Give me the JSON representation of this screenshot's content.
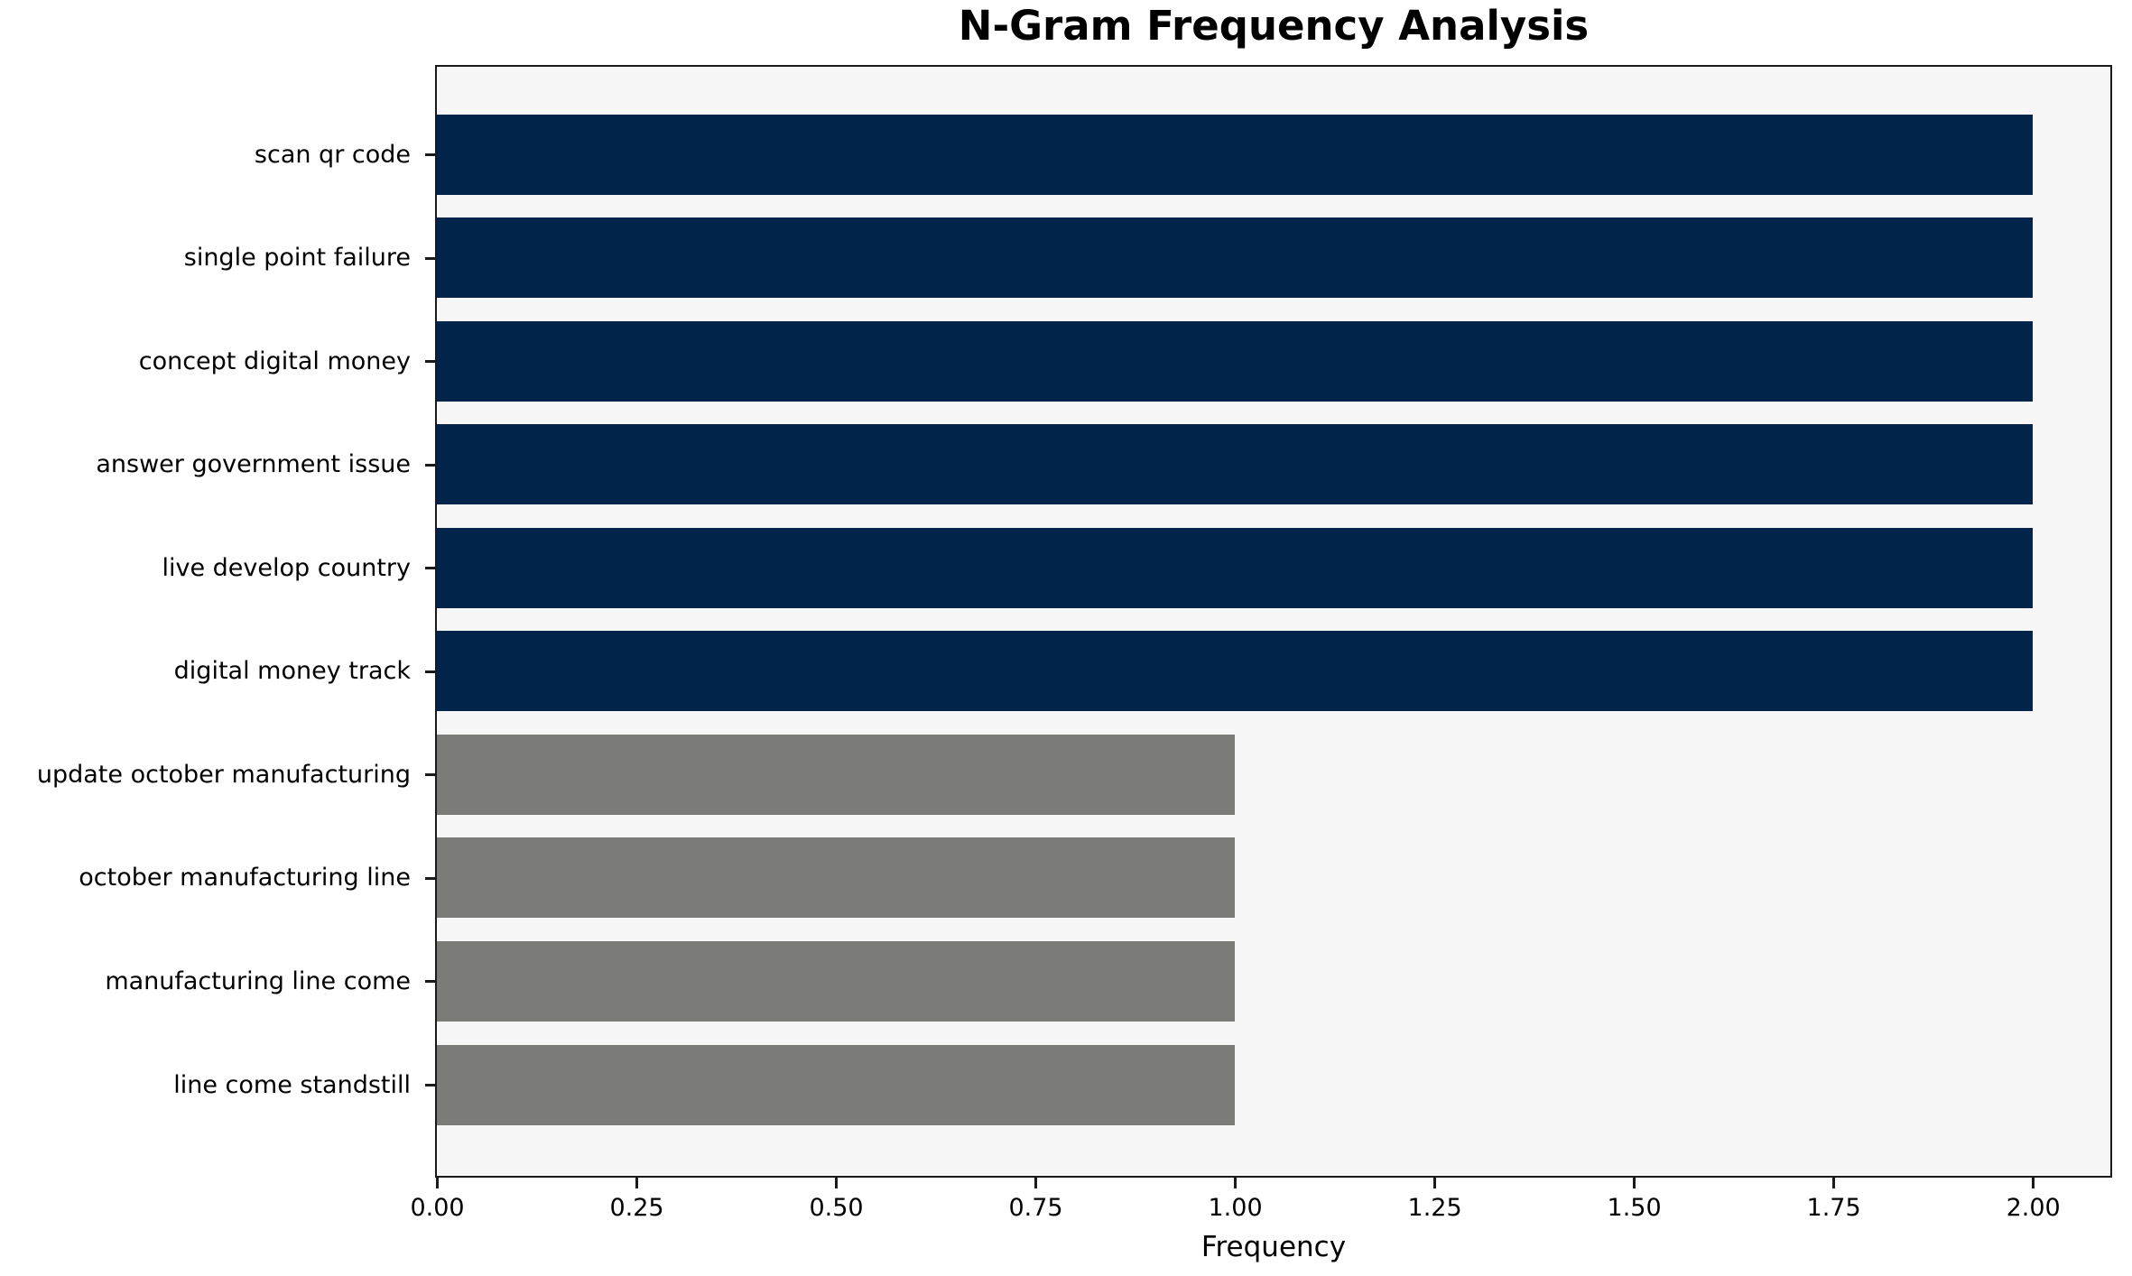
{
  "chart_data": {
    "type": "bar",
    "orientation": "horizontal",
    "title": "N-Gram Frequency Analysis",
    "xlabel": "Frequency",
    "ylabel": "",
    "categories": [
      "scan qr code",
      "single point failure",
      "concept digital money",
      "answer government issue",
      "live develop country",
      "digital money track",
      "update october manufacturing",
      "october manufacturing line",
      "manufacturing line come",
      "line come standstill"
    ],
    "values": [
      2,
      2,
      2,
      2,
      2,
      2,
      1,
      1,
      1,
      1
    ],
    "bar_colors": [
      "#02234a",
      "#02234a",
      "#02234a",
      "#02234a",
      "#02234a",
      "#02234a",
      "#7b7b78",
      "#7b7b78",
      "#7b7b78",
      "#7b7b78"
    ],
    "xlim": [
      0,
      2.096
    ],
    "xticks": [
      {
        "value": 0.0,
        "label": "0.00"
      },
      {
        "value": 0.25,
        "label": "0.25"
      },
      {
        "value": 0.5,
        "label": "0.50"
      },
      {
        "value": 0.75,
        "label": "0.75"
      },
      {
        "value": 1.0,
        "label": "1.00"
      },
      {
        "value": 1.25,
        "label": "1.25"
      },
      {
        "value": 1.5,
        "label": "1.50"
      },
      {
        "value": 1.75,
        "label": "1.75"
      },
      {
        "value": 2.0,
        "label": "2.00"
      }
    ],
    "grid": false,
    "legend_position": "none",
    "plot_background": "#f7f7f7",
    "figure_background": "#ffffff"
  }
}
